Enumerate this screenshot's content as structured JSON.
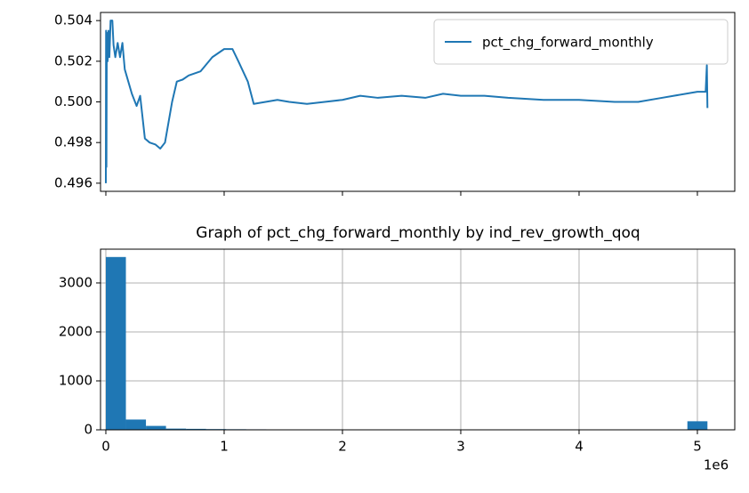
{
  "chart_data": [
    {
      "type": "line",
      "xlim": [
        -45000,
        5316000
      ],
      "xticks": [
        0,
        1000000,
        2000000,
        3000000,
        4000000,
        5000000
      ],
      "ylim": [
        0.4956,
        0.5044
      ],
      "yticks": [
        0.496,
        0.498,
        0.5,
        0.502,
        0.504
      ],
      "yticklabels": [
        "0.496",
        "0.498",
        "0.500",
        "0.502",
        "0.504"
      ],
      "grid": false,
      "legend": "upper right",
      "series": [
        {
          "name": "pct_chg_forward_monthly",
          "color": "#1f77b4",
          "x": [
            0,
            2000,
            5000,
            8000,
            15000,
            22000,
            30000,
            40000,
            55000,
            65000,
            80000,
            100000,
            120000,
            140000,
            160000,
            190000,
            220000,
            260000,
            290000,
            330000,
            370000,
            420000,
            460000,
            500000,
            560000,
            600000,
            650000,
            700000,
            800000,
            900000,
            1000000,
            1070000,
            1120000,
            1200000,
            1250000,
            1350000,
            1450000,
            1550000,
            1700000,
            1850000,
            2000000,
            2150000,
            2300000,
            2500000,
            2700000,
            2850000,
            3000000,
            3200000,
            3400000,
            3700000,
            4000000,
            4300000,
            4500000,
            4700000,
            5000000,
            5070000,
            5080000,
            5085000
          ],
          "values": [
            0.496,
            0.5035,
            0.4968,
            0.5034,
            0.502,
            0.5035,
            0.5022,
            0.504,
            0.504,
            0.5028,
            0.5022,
            0.5029,
            0.5022,
            0.5029,
            0.5016,
            0.501,
            0.5004,
            0.4998,
            0.5003,
            0.4982,
            0.498,
            0.4979,
            0.4977,
            0.498,
            0.5,
            0.501,
            0.5011,
            0.5013,
            0.5015,
            0.5022,
            0.5026,
            0.5026,
            0.502,
            0.501,
            0.4999,
            0.5,
            0.5001,
            0.5,
            0.4999,
            0.5,
            0.5001,
            0.5003,
            0.5002,
            0.5003,
            0.5002,
            0.5004,
            0.5003,
            0.5003,
            0.5002,
            0.5001,
            0.5001,
            0.5,
            0.5,
            0.5002,
            0.5005,
            0.5005,
            0.5018,
            0.4997
          ]
        }
      ]
    },
    {
      "type": "histogram",
      "title": "Graph of pct_chg_forward_monthly by ind_rev_growth_qoq",
      "color": "#1f77b4",
      "bins": [
        0,
        169500,
        339000,
        508500,
        678000,
        847500,
        1017000,
        1186500,
        1356000,
        1525500,
        1695000,
        1864500,
        2034000,
        2203500,
        2373000,
        2542500,
        2712000,
        2881500,
        3051000,
        3220500,
        3390000,
        3559500,
        3729000,
        3898500,
        4068000,
        4237500,
        4407000,
        4576500,
        4746000,
        4915500,
        5085000
      ],
      "values": [
        3530,
        210,
        80,
        25,
        20,
        15,
        12,
        10,
        0,
        0,
        0,
        0,
        0,
        0,
        0,
        0,
        0,
        0,
        0,
        0,
        0,
        0,
        0,
        0,
        0,
        0,
        0,
        0,
        0,
        175
      ],
      "xlim": [
        -45000,
        5316000
      ],
      "xticks": [
        {
          "value": 0,
          "label": "0"
        },
        {
          "value": 1000000,
          "label": "1"
        },
        {
          "value": 2000000,
          "label": "2"
        },
        {
          "value": 3000000,
          "label": "3"
        },
        {
          "value": 4000000,
          "label": "4"
        },
        {
          "value": 5000000,
          "label": "5"
        }
      ],
      "x_offset_label": "1e6",
      "ylim": [
        0,
        3690
      ],
      "yticks": [
        0,
        1000,
        2000,
        3000
      ],
      "grid": true
    }
  ]
}
